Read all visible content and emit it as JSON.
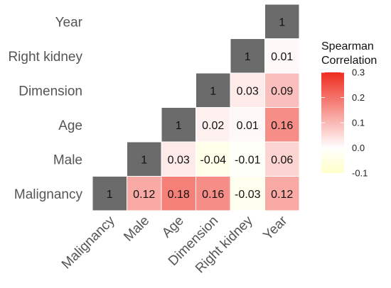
{
  "chart_data": {
    "type": "heatmap",
    "title": "",
    "xlabel": "",
    "ylabel": "",
    "variables": [
      "Malignancy",
      "Male",
      "Age",
      "Dimension",
      "Right kidney",
      "Year"
    ],
    "cells": [
      {
        "row": "Malignancy",
        "col": "Malignancy",
        "value": 1,
        "label": "1"
      },
      {
        "row": "Malignancy",
        "col": "Male",
        "value": 0.12,
        "label": "0.12"
      },
      {
        "row": "Malignancy",
        "col": "Age",
        "value": 0.18,
        "label": "0.18"
      },
      {
        "row": "Malignancy",
        "col": "Dimension",
        "value": 0.16,
        "label": "0.16"
      },
      {
        "row": "Malignancy",
        "col": "Right kidney",
        "value": -0.03,
        "label": "-0.03"
      },
      {
        "row": "Malignancy",
        "col": "Year",
        "value": 0.12,
        "label": "0.12"
      },
      {
        "row": "Male",
        "col": "Male",
        "value": 1,
        "label": "1"
      },
      {
        "row": "Male",
        "col": "Age",
        "value": 0.03,
        "label": "0.03"
      },
      {
        "row": "Male",
        "col": "Dimension",
        "value": -0.04,
        "label": "-0.04"
      },
      {
        "row": "Male",
        "col": "Right kidney",
        "value": -0.01,
        "label": "-0.01"
      },
      {
        "row": "Male",
        "col": "Year",
        "value": 0.06,
        "label": "0.06"
      },
      {
        "row": "Age",
        "col": "Age",
        "value": 1,
        "label": "1"
      },
      {
        "row": "Age",
        "col": "Dimension",
        "value": 0.02,
        "label": "0.02"
      },
      {
        "row": "Age",
        "col": "Right kidney",
        "value": 0.01,
        "label": "0.01"
      },
      {
        "row": "Age",
        "col": "Year",
        "value": 0.16,
        "label": "0.16"
      },
      {
        "row": "Dimension",
        "col": "Dimension",
        "value": 1,
        "label": "1"
      },
      {
        "row": "Dimension",
        "col": "Right kidney",
        "value": 0.03,
        "label": "0.03"
      },
      {
        "row": "Dimension",
        "col": "Year",
        "value": 0.09,
        "label": "0.09"
      },
      {
        "row": "Right kidney",
        "col": "Right kidney",
        "value": 1,
        "label": "1"
      },
      {
        "row": "Right kidney",
        "col": "Year",
        "value": 0.01,
        "label": "0.01"
      },
      {
        "row": "Year",
        "col": "Year",
        "value": 1,
        "label": "1"
      }
    ],
    "diagonal_color": "#6b6b6b",
    "legend": {
      "title_lines": [
        "Spearman",
        "Correlation"
      ],
      "range": [
        -0.1,
        0.3
      ],
      "ticks": [
        0.3,
        0.2,
        0.1,
        0.0,
        -0.1
      ],
      "tick_labels": [
        "0.3",
        "0.2",
        "0.1",
        "0.0",
        "-0.1"
      ],
      "colors": {
        "low": "#ffffc8",
        "mid": "#ffffff",
        "high": "#ef2b1e"
      },
      "placement": "right"
    }
  }
}
